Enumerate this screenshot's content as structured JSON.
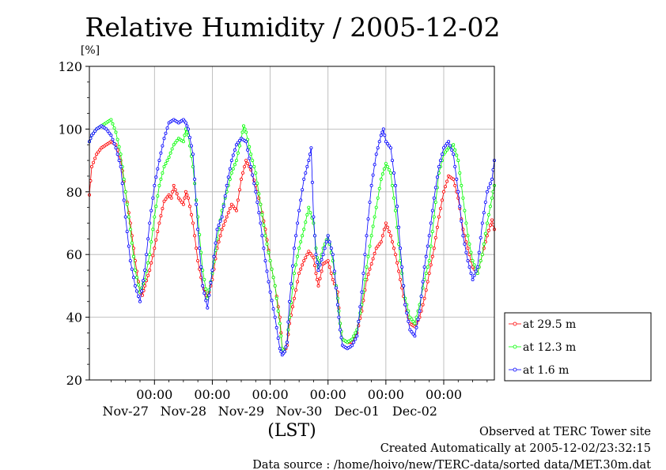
{
  "chart_data": {
    "type": "line",
    "title": "Relative Humidity / 2005-12-02",
    "ylabel": "[%]",
    "xlabel": "(LST)",
    "ylim": [
      20,
      120
    ],
    "yticks": [
      20,
      40,
      60,
      80,
      100,
      120
    ],
    "xlim_hours": [
      -27,
      141
    ],
    "x_tick_time": "00:00",
    "x_day_labels": [
      "Nov-27",
      "Nov-28",
      "Nov-29",
      "Nov-30",
      "Dec-01",
      "Dec-02"
    ],
    "x_day_label_hour": 12,
    "grid": true,
    "legend_position": "right",
    "series": [
      {
        "name": "at 29.5 m",
        "color": "#ff0000",
        "points": [
          [
            -27,
            79
          ],
          [
            -26,
            88
          ],
          [
            -24,
            92
          ],
          [
            -22,
            94
          ],
          [
            -20,
            95
          ],
          [
            -18,
            96
          ],
          [
            -16,
            95
          ],
          [
            -14,
            90
          ],
          [
            -12,
            80
          ],
          [
            -10,
            70
          ],
          [
            -8,
            58
          ],
          [
            -6,
            48
          ],
          [
            -5,
            47
          ],
          [
            -4,
            50
          ],
          [
            -2,
            55
          ],
          [
            0,
            62
          ],
          [
            2,
            70
          ],
          [
            4,
            77
          ],
          [
            6,
            79
          ],
          [
            7,
            78
          ],
          [
            8,
            82
          ],
          [
            10,
            78
          ],
          [
            12,
            76
          ],
          [
            13,
            80
          ],
          [
            14,
            78
          ],
          [
            16,
            70
          ],
          [
            18,
            58
          ],
          [
            20,
            50
          ],
          [
            21,
            48
          ],
          [
            22,
            46
          ],
          [
            24,
            52
          ],
          [
            26,
            62
          ],
          [
            28,
            68
          ],
          [
            30,
            72
          ],
          [
            32,
            76
          ],
          [
            34,
            74
          ],
          [
            36,
            84
          ],
          [
            38,
            90
          ],
          [
            40,
            87
          ],
          [
            42,
            82
          ],
          [
            44,
            76
          ],
          [
            46,
            68
          ],
          [
            48,
            58
          ],
          [
            50,
            50
          ],
          [
            52,
            40
          ],
          [
            53,
            30
          ],
          [
            54,
            29
          ],
          [
            55,
            31
          ],
          [
            56,
            38
          ],
          [
            58,
            46
          ],
          [
            60,
            54
          ],
          [
            62,
            58
          ],
          [
            64,
            61
          ],
          [
            66,
            59
          ],
          [
            67,
            54
          ],
          [
            68,
            50
          ],
          [
            70,
            57
          ],
          [
            72,
            58
          ],
          [
            74,
            52
          ],
          [
            76,
            48
          ],
          [
            77,
            38
          ],
          [
            78,
            33
          ],
          [
            80,
            32
          ],
          [
            82,
            32
          ],
          [
            84,
            35
          ],
          [
            86,
            42
          ],
          [
            88,
            52
          ],
          [
            90,
            57
          ],
          [
            92,
            62
          ],
          [
            94,
            64
          ],
          [
            96,
            70
          ],
          [
            98,
            66
          ],
          [
            100,
            60
          ],
          [
            102,
            52
          ],
          [
            104,
            44
          ],
          [
            106,
            38
          ],
          [
            108,
            37
          ],
          [
            110,
            40
          ],
          [
            112,
            46
          ],
          [
            114,
            54
          ],
          [
            116,
            62
          ],
          [
            118,
            72
          ],
          [
            120,
            80
          ],
          [
            122,
            85
          ],
          [
            124,
            84
          ],
          [
            126,
            78
          ],
          [
            128,
            68
          ],
          [
            130,
            62
          ],
          [
            132,
            56
          ],
          [
            134,
            54
          ],
          [
            136,
            60
          ],
          [
            138,
            66
          ],
          [
            140,
            71
          ],
          [
            141,
            68
          ]
        ]
      },
      {
        "name": "at 12.3 m",
        "color": "#00ff00",
        "points": [
          [
            -27,
            96
          ],
          [
            -26,
            98
          ],
          [
            -24,
            100
          ],
          [
            -22,
            101
          ],
          [
            -20,
            102
          ],
          [
            -18,
            103
          ],
          [
            -16,
            99
          ],
          [
            -14,
            92
          ],
          [
            -12,
            80
          ],
          [
            -10,
            68
          ],
          [
            -8,
            55
          ],
          [
            -6,
            48
          ],
          [
            -4,
            52
          ],
          [
            -2,
            60
          ],
          [
            0,
            72
          ],
          [
            2,
            82
          ],
          [
            4,
            88
          ],
          [
            6,
            91
          ],
          [
            8,
            95
          ],
          [
            10,
            97
          ],
          [
            12,
            96
          ],
          [
            13,
            100
          ],
          [
            14,
            98
          ],
          [
            16,
            88
          ],
          [
            18,
            72
          ],
          [
            20,
            55
          ],
          [
            22,
            46
          ],
          [
            24,
            54
          ],
          [
            26,
            65
          ],
          [
            28,
            74
          ],
          [
            30,
            80
          ],
          [
            32,
            86
          ],
          [
            34,
            90
          ],
          [
            36,
            97
          ],
          [
            37,
            101
          ],
          [
            38,
            99
          ],
          [
            40,
            92
          ],
          [
            42,
            86
          ],
          [
            44,
            76
          ],
          [
            46,
            66
          ],
          [
            48,
            58
          ],
          [
            50,
            50
          ],
          [
            52,
            38
          ],
          [
            53,
            30
          ],
          [
            54,
            29
          ],
          [
            55,
            32
          ],
          [
            56,
            40
          ],
          [
            58,
            54
          ],
          [
            60,
            62
          ],
          [
            62,
            68
          ],
          [
            64,
            75
          ],
          [
            66,
            70
          ],
          [
            67,
            62
          ],
          [
            68,
            56
          ],
          [
            70,
            62
          ],
          [
            72,
            66
          ],
          [
            74,
            58
          ],
          [
            76,
            46
          ],
          [
            77,
            38
          ],
          [
            78,
            33
          ],
          [
            80,
            32
          ],
          [
            82,
            33
          ],
          [
            84,
            36
          ],
          [
            86,
            44
          ],
          [
            88,
            56
          ],
          [
            90,
            66
          ],
          [
            92,
            75
          ],
          [
            94,
            84
          ],
          [
            96,
            89
          ],
          [
            98,
            86
          ],
          [
            100,
            74
          ],
          [
            102,
            58
          ],
          [
            104,
            46
          ],
          [
            106,
            40
          ],
          [
            108,
            38
          ],
          [
            110,
            44
          ],
          [
            112,
            52
          ],
          [
            114,
            58
          ],
          [
            116,
            72
          ],
          [
            118,
            86
          ],
          [
            120,
            92
          ],
          [
            122,
            94
          ],
          [
            124,
            95
          ],
          [
            126,
            90
          ],
          [
            128,
            78
          ],
          [
            130,
            66
          ],
          [
            132,
            58
          ],
          [
            134,
            54
          ],
          [
            136,
            60
          ],
          [
            138,
            70
          ],
          [
            140,
            78
          ],
          [
            141,
            82
          ]
        ]
      },
      {
        "name": "at 1.6 m",
        "color": "#0000ff",
        "points": [
          [
            -27,
            96
          ],
          [
            -26,
            98
          ],
          [
            -24,
            100
          ],
          [
            -22,
            101
          ],
          [
            -20,
            100
          ],
          [
            -18,
            98
          ],
          [
            -16,
            94
          ],
          [
            -14,
            88
          ],
          [
            -12,
            72
          ],
          [
            -10,
            58
          ],
          [
            -8,
            50
          ],
          [
            -6,
            45
          ],
          [
            -4,
            55
          ],
          [
            -2,
            70
          ],
          [
            0,
            82
          ],
          [
            2,
            90
          ],
          [
            4,
            97
          ],
          [
            6,
            102
          ],
          [
            8,
            103
          ],
          [
            10,
            102
          ],
          [
            12,
            103
          ],
          [
            13,
            102
          ],
          [
            14,
            100
          ],
          [
            16,
            92
          ],
          [
            18,
            68
          ],
          [
            20,
            50
          ],
          [
            22,
            43
          ],
          [
            24,
            55
          ],
          [
            26,
            68
          ],
          [
            28,
            72
          ],
          [
            30,
            82
          ],
          [
            32,
            90
          ],
          [
            34,
            95
          ],
          [
            36,
            97
          ],
          [
            38,
            96
          ],
          [
            40,
            88
          ],
          [
            42,
            80
          ],
          [
            44,
            70
          ],
          [
            46,
            58
          ],
          [
            48,
            48
          ],
          [
            50,
            40
          ],
          [
            52,
            30
          ],
          [
            53,
            28
          ],
          [
            54,
            29
          ],
          [
            55,
            32
          ],
          [
            56,
            45
          ],
          [
            58,
            62
          ],
          [
            60,
            74
          ],
          [
            62,
            84
          ],
          [
            64,
            90
          ],
          [
            65,
            94
          ],
          [
            66,
            72
          ],
          [
            67,
            60
          ],
          [
            68,
            55
          ],
          [
            70,
            60
          ],
          [
            72,
            66
          ],
          [
            74,
            60
          ],
          [
            76,
            44
          ],
          [
            77,
            36
          ],
          [
            78,
            31
          ],
          [
            80,
            30
          ],
          [
            82,
            31
          ],
          [
            84,
            34
          ],
          [
            86,
            48
          ],
          [
            88,
            66
          ],
          [
            90,
            82
          ],
          [
            92,
            92
          ],
          [
            94,
            98
          ],
          [
            95,
            100
          ],
          [
            96,
            96
          ],
          [
            98,
            94
          ],
          [
            100,
            82
          ],
          [
            102,
            62
          ],
          [
            104,
            44
          ],
          [
            106,
            36
          ],
          [
            108,
            34
          ],
          [
            110,
            42
          ],
          [
            112,
            56
          ],
          [
            114,
            66
          ],
          [
            116,
            78
          ],
          [
            118,
            88
          ],
          [
            120,
            94
          ],
          [
            122,
            96
          ],
          [
            124,
            92
          ],
          [
            126,
            80
          ],
          [
            128,
            66
          ],
          [
            130,
            58
          ],
          [
            132,
            52
          ],
          [
            134,
            56
          ],
          [
            136,
            70
          ],
          [
            138,
            80
          ],
          [
            140,
            84
          ],
          [
            141,
            90
          ]
        ]
      }
    ]
  },
  "footer": {
    "line1": "Observed at TERC Tower site",
    "line2": "Created Automatically at 2005-12-02/23:32:15",
    "line3": "Data source : /home/hoivo/new/TERC-data/sorted  data/MET.30m.dat"
  }
}
